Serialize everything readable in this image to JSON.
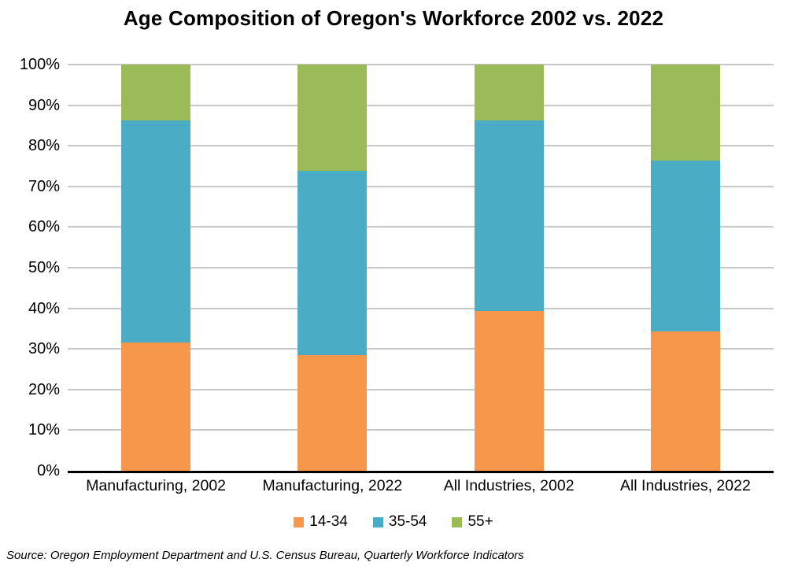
{
  "chart_data": {
    "type": "bar",
    "variant": "stacked-100-percent",
    "title": "Age Composition of Oregon's Workforce 2002 vs. 2022",
    "categories": [
      "Manufacturing, 2002",
      "Manufacturing, 2022",
      "All Industries, 2002",
      "All Industries, 2022"
    ],
    "series": [
      {
        "name": "14-34",
        "color": "#F6974B",
        "values": [
          31.5,
          28.5,
          39.3,
          34.4
        ]
      },
      {
        "name": "35-54",
        "color": "#4BACC6",
        "values": [
          54.7,
          45.3,
          47.0,
          42.0
        ]
      },
      {
        "name": "55+",
        "color": "#9BBB59",
        "values": [
          13.8,
          26.2,
          13.7,
          23.6
        ]
      }
    ],
    "y_axis": {
      "min": 0,
      "max": 100,
      "tick_values": [
        0,
        10,
        20,
        30,
        40,
        50,
        60,
        70,
        80,
        90,
        100
      ],
      "ticks": [
        "0%",
        "10%",
        "20%",
        "30%",
        "40%",
        "50%",
        "60%",
        "70%",
        "80%",
        "90%",
        "100%"
      ]
    },
    "xlabel": "",
    "ylabel": "",
    "grid": true,
    "legend_position": "bottom"
  },
  "source_note": "Source: Oregon Employment Department and U.S. Census Bureau, Quarterly Workforce Indicators",
  "colors": {
    "gridline": "#C8C8C8",
    "axis": "#000000",
    "text": "#000000",
    "background": "#FFFFFF"
  }
}
